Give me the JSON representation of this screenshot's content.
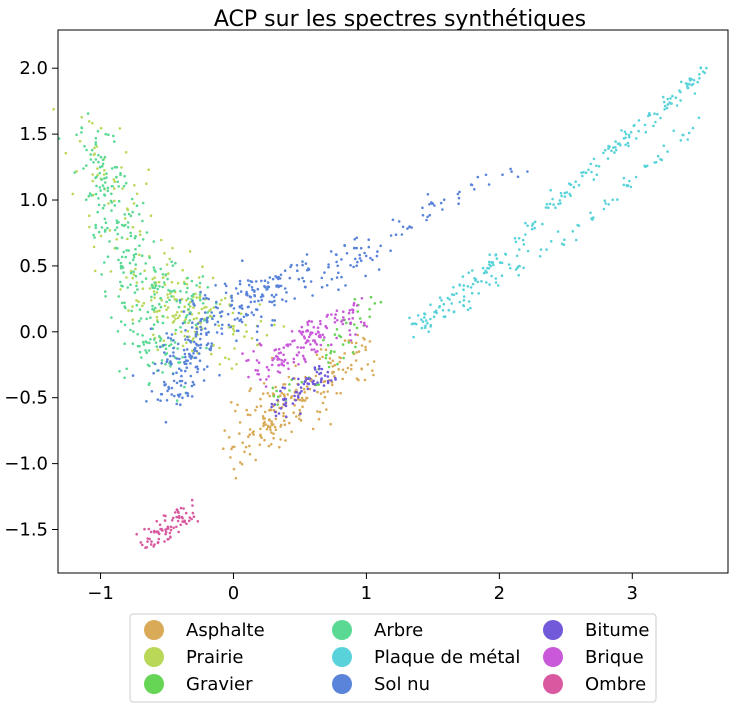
{
  "chart_data": {
    "type": "scatter",
    "title": "ACP sur les spectres synthétiques",
    "xlabel": "",
    "ylabel": "",
    "xlim": [
      -1.32,
      3.72
    ],
    "ylim": [
      -1.83,
      2.29
    ],
    "x_ticks": [
      -1,
      0,
      1,
      2,
      3
    ],
    "x_tick_labels": [
      "−1",
      "0",
      "1",
      "2",
      "3"
    ],
    "y_ticks": [
      -1.5,
      -1.0,
      -0.5,
      0.0,
      0.5,
      1.0,
      1.5,
      2.0
    ],
    "y_tick_labels": [
      "−1.5",
      "−1.0",
      "−0.5",
      "0.0",
      "0.5",
      "1.0",
      "1.5",
      "2.0"
    ],
    "grid": false,
    "legend_position": "bottom",
    "legend_columns": 3,
    "series": [
      {
        "name": "Asphalte",
        "color": "#d9ab59",
        "clusters": [
          {
            "x": [
              -0.05,
              0.55,
              1.0
            ],
            "y": [
              -0.92,
              -0.45,
              -0.15
            ],
            "spread": 0.1,
            "n": 140
          },
          {
            "x": [
              0.15,
              0.5
            ],
            "y": [
              -0.75,
              -0.55
            ],
            "spread": 0.12,
            "n": 80
          }
        ]
      },
      {
        "name": "Prairie",
        "color": "#b9d858",
        "clusters": [
          {
            "x": [
              -1.15,
              -0.6,
              -0.3
            ],
            "y": [
              1.6,
              0.4,
              0.05
            ],
            "spread": 0.12,
            "n": 140
          },
          {
            "x": [
              -0.6,
              0.1
            ],
            "y": [
              0.15,
              0.0
            ],
            "spread": 0.15,
            "n": 90
          }
        ]
      },
      {
        "name": "Gravier",
        "color": "#66d455",
        "clusters": [
          {
            "x": [
              0.3,
              0.7,
              1.0
            ],
            "y": [
              -0.55,
              -0.2,
              0.25
            ],
            "spread": 0.06,
            "n": 50
          }
        ]
      },
      {
        "name": "Arbre",
        "color": "#59d994",
        "clusters": [
          {
            "x": [
              -1.1,
              -0.9,
              -0.7,
              -0.55
            ],
            "y": [
              1.5,
              0.9,
              0.3,
              -0.3
            ],
            "spread": 0.11,
            "n": 260
          },
          {
            "x": [
              -0.55,
              -0.2
            ],
            "y": [
              0.4,
              0.1
            ],
            "spread": 0.1,
            "n": 60
          }
        ]
      },
      {
        "name": "Plaque de métal",
        "color": "#59d3d9",
        "clusters": [
          {
            "x": [
              1.35,
              2.0,
              2.8,
              3.55
            ],
            "y": [
              0.05,
              0.55,
              1.35,
              1.98
            ],
            "spread": 0.03,
            "n": 200
          },
          {
            "x": [
              1.4,
              2.1,
              2.8,
              3.5
            ],
            "y": [
              0.0,
              0.45,
              0.95,
              1.6
            ],
            "spread": 0.03,
            "n": 90
          }
        ]
      },
      {
        "name": "Sol nu",
        "color": "#5984d9",
        "clusters": [
          {
            "x": [
              -0.5,
              -0.25,
              0.2
            ],
            "y": [
              -0.5,
              0.05,
              0.25
            ],
            "spread": 0.1,
            "n": 240
          },
          {
            "x": [
              0.1,
              0.6,
              1.1
            ],
            "y": [
              0.3,
              0.45,
              0.65
            ],
            "spread": 0.08,
            "n": 110
          },
          {
            "x": [
              1.1,
              1.6,
              2.2
            ],
            "y": [
              0.7,
              1.0,
              1.3
            ],
            "spread": 0.05,
            "n": 40
          }
        ]
      },
      {
        "name": "Bitume",
        "color": "#7159d9",
        "clusters": [
          {
            "x": [
              0.3,
              0.55,
              0.7
            ],
            "y": [
              -0.6,
              -0.42,
              -0.3
            ],
            "spread": 0.05,
            "n": 70
          }
        ]
      },
      {
        "name": "Brique",
        "color": "#c959d9",
        "clusters": [
          {
            "x": [
              0.2,
              0.55,
              0.95
            ],
            "y": [
              -0.3,
              -0.05,
              0.15
            ],
            "spread": 0.07,
            "n": 150
          }
        ]
      },
      {
        "name": "Ombre",
        "color": "#d959a0",
        "clusters": [
          {
            "x": [
              -0.65,
              -0.5,
              -0.35
            ],
            "y": [
              -1.6,
              -1.5,
              -1.35
            ],
            "spread": 0.05,
            "n": 80
          }
        ]
      }
    ]
  }
}
